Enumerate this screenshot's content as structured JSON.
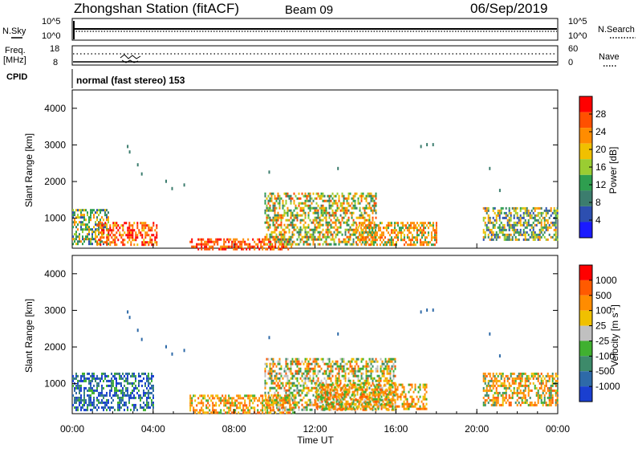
{
  "header": {
    "station": "Zhongshan Station (fitACF)",
    "beam": "Beam 09",
    "date": "06/Sep/2019"
  },
  "top_panels": {
    "nsky_label": "N.Sky",
    "nsky_ticks": [
      "10^5",
      "10^0"
    ],
    "nsearch_label": "N.Search",
    "nsearch_ticks": [
      "10^5",
      "10^0"
    ],
    "freq_label": "Freq.",
    "freq_unit": "[MHz]",
    "freq_ticks": [
      "18",
      "8"
    ],
    "nave_label": "Nave",
    "nave_ticks": [
      "60",
      "0"
    ],
    "cpid_label": "CPID",
    "cpid_text": "normal (fast stereo) 153"
  },
  "chart_data": [
    {
      "type": "heatmap",
      "panel": "power",
      "ylabel": "Slant Range [km]",
      "ylim": [
        180,
        4500
      ],
      "yticks": [
        "4000",
        "3000",
        "2000",
        "1000"
      ],
      "xlim": [
        "00:00",
        "24:00"
      ],
      "xticks": [
        "00:00",
        "04:00",
        "08:00",
        "12:00",
        "16:00",
        "20:00",
        "00:00"
      ],
      "colorbar": {
        "label": "Power [dB]",
        "ticks": [
          "28",
          "24",
          "20",
          "16",
          "12",
          "8",
          "4"
        ],
        "colors": [
          "#1a1aff",
          "#2d4fb0",
          "#3c7d6e",
          "#2e9e4f",
          "#9acd32",
          "#f0c000",
          "#ff8c00",
          "#ff5000",
          "#ff0000"
        ]
      },
      "series": [
        {
          "start_h": 0.0,
          "end_h": 1.8,
          "r_lo": 300,
          "r_hi": 1250,
          "level": "mixed-blue-green"
        },
        {
          "start_h": 1.2,
          "end_h": 4.2,
          "r_lo": 280,
          "r_hi": 900,
          "level": "orange-red"
        },
        {
          "start_h": 5.8,
          "end_h": 10.8,
          "r_lo": 180,
          "r_hi": 450,
          "level": "red-orange"
        },
        {
          "start_h": 9.5,
          "end_h": 15.0,
          "r_lo": 300,
          "r_hi": 1700,
          "level": "green-orange"
        },
        {
          "start_h": 14.0,
          "end_h": 18.0,
          "r_lo": 300,
          "r_hi": 900,
          "level": "orange"
        },
        {
          "start_h": 20.3,
          "end_h": 24.0,
          "r_lo": 400,
          "r_hi": 1300,
          "level": "green-blue"
        }
      ]
    },
    {
      "type": "heatmap",
      "panel": "velocity",
      "ylabel": "Slant Range [km]",
      "ylim": [
        180,
        4500
      ],
      "yticks": [
        "4000",
        "3000",
        "2000",
        "1000"
      ],
      "xlabel": "Time UT",
      "xlim": [
        "00:00",
        "24:00"
      ],
      "xticks": [
        "00:00",
        "04:00",
        "08:00",
        "12:00",
        "16:00",
        "20:00",
        "00:00"
      ],
      "colorbar": {
        "label": "Velocity [m s",
        "label_sup": "-1",
        "label_end": "]",
        "ticks": [
          "1000",
          "500",
          "100",
          "25",
          "-25",
          "-100",
          "-500",
          "-1000"
        ],
        "colors": [
          "#1a3fd0",
          "#2e6aa8",
          "#3d8a6a",
          "#40b030",
          "#c0c0c0",
          "#f0c000",
          "#ff8c00",
          "#ff5a00",
          "#ff0000"
        ]
      },
      "series": [
        {
          "start_h": 0.0,
          "end_h": 4.0,
          "r_lo": 300,
          "r_hi": 1300,
          "level": "blue"
        },
        {
          "start_h": 5.8,
          "end_h": 11.0,
          "r_lo": 180,
          "r_hi": 700,
          "level": "orange"
        },
        {
          "start_h": 9.5,
          "end_h": 16.0,
          "r_lo": 300,
          "r_hi": 1700,
          "level": "green-orange"
        },
        {
          "start_h": 12.0,
          "end_h": 17.5,
          "r_lo": 300,
          "r_hi": 1000,
          "level": "orange"
        },
        {
          "start_h": 20.3,
          "end_h": 24.0,
          "r_lo": 400,
          "r_hi": 1300,
          "level": "orange-green"
        }
      ]
    }
  ]
}
